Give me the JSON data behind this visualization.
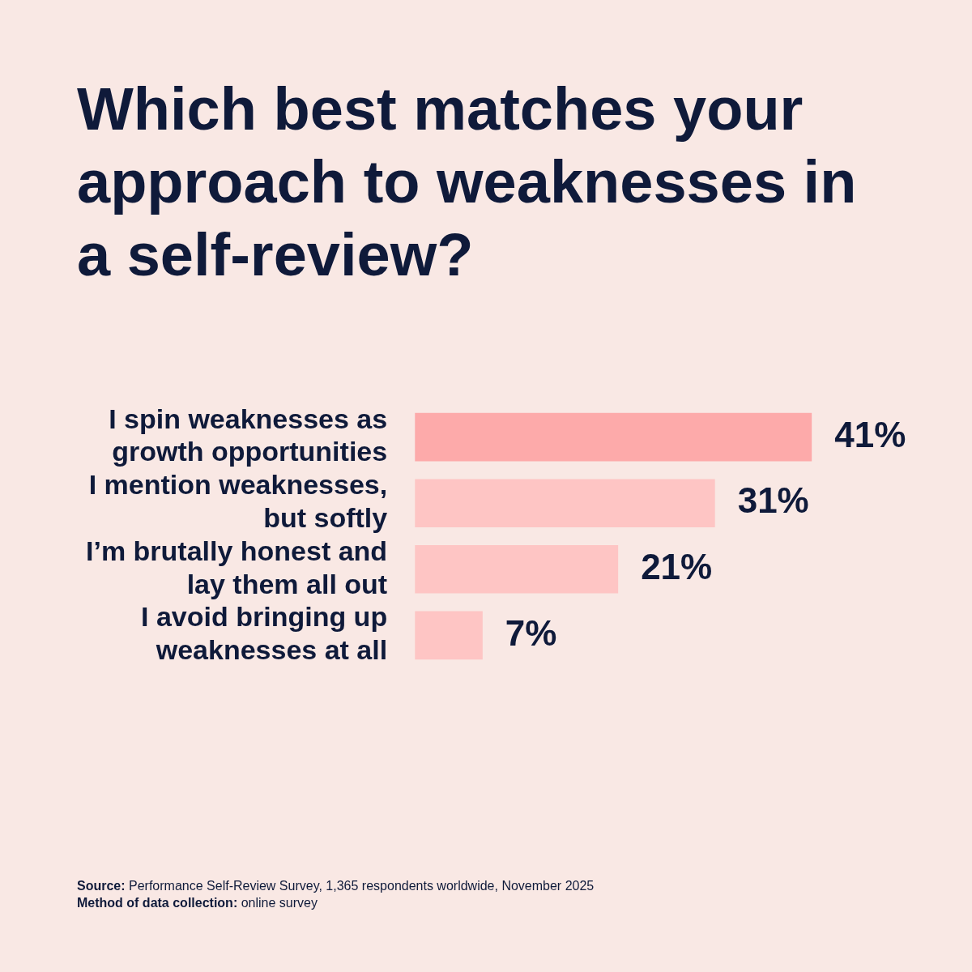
{
  "chart_data": {
    "type": "bar",
    "orientation": "horizontal",
    "tick_labels": "y",
    "title": "Which best matches your approach to weaknesses in a self-review?",
    "categories": [
      "I spin weaknesses as growth opportunities",
      "I mention weaknesses, but softly",
      "I’m brutally honest and lay them all out",
      "I avoid bringing up weaknesses at all"
    ],
    "values": [
      41,
      31,
      21,
      7
    ],
    "colors": [
      "#fdaaaa",
      "#fec5c4",
      "#fec5c4",
      "#fec5c4"
    ],
    "value_labels": [
      "41%",
      "31%",
      "21%",
      "7%"
    ],
    "legend": false,
    "annotations": [
      "Source: Performance Self-Review Survey, 1,365 respondents worldwide, November 2025",
      "Method of data collection: online survey"
    ]
  }
}
